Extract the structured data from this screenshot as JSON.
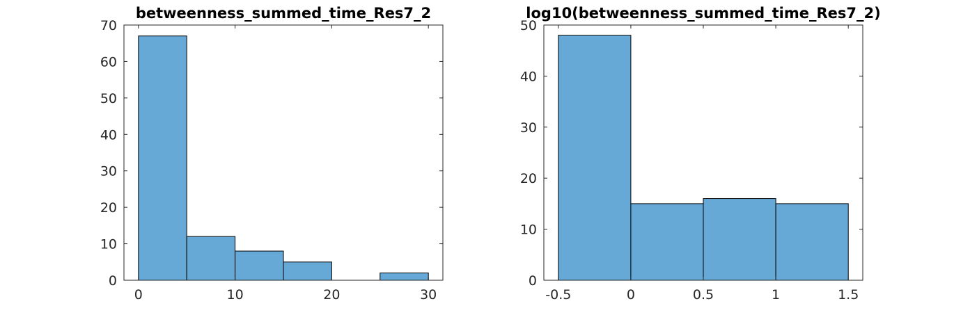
{
  "chart_data": [
    {
      "type": "bar",
      "title": "betweenness_summed_time_Res7_2",
      "xlabel": "",
      "ylabel": "",
      "bin_edges": [
        0,
        5,
        10,
        15,
        20,
        25,
        30
      ],
      "values": [
        67,
        12,
        8,
        5,
        0,
        2
      ],
      "xlim": [
        -1.5,
        31.5
      ],
      "ylim": [
        0,
        70
      ],
      "xticks": [
        0,
        10,
        20,
        30
      ],
      "xtick_labels": [
        "0",
        "10",
        "20",
        "30"
      ],
      "yticks": [
        0,
        10,
        20,
        30,
        40,
        50,
        60,
        70
      ],
      "ytick_labels": [
        "0",
        "10",
        "20",
        "30",
        "40",
        "50",
        "60",
        "70"
      ],
      "bar_color": "#66a9d7",
      "grid": false
    },
    {
      "type": "bar",
      "title": "log10(betweenness_summed_time_Res7_2)",
      "xlabel": "",
      "ylabel": "",
      "bin_edges": [
        -0.5,
        0,
        0.5,
        1,
        1.5
      ],
      "values": [
        48,
        15,
        16,
        15
      ],
      "xlim": [
        -0.6,
        1.6
      ],
      "ylim": [
        0,
        50
      ],
      "xticks": [
        -0.5,
        0,
        0.5,
        1,
        1.5
      ],
      "xtick_labels": [
        "-0.5",
        "0",
        "0.5",
        "1",
        "1.5"
      ],
      "yticks": [
        0,
        10,
        20,
        30,
        40,
        50
      ],
      "ytick_labels": [
        "0",
        "10",
        "20",
        "30",
        "40",
        "50"
      ],
      "bar_color": "#66a9d7",
      "grid": false
    }
  ]
}
